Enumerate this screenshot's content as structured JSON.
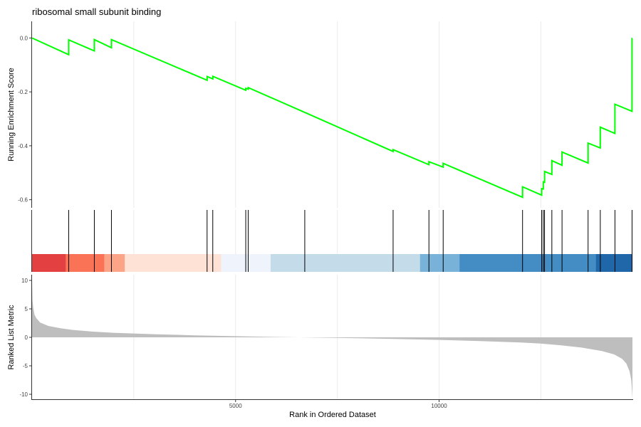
{
  "chart_data": {
    "type": "line",
    "title": "ribosomal small subunit binding",
    "xlabel": "Rank in Ordered Dataset",
    "xlim": [
      0,
      14750
    ],
    "x_ticks": [
      5000,
      10000
    ],
    "grid": true,
    "colors": {
      "running_score": "#00ff00",
      "hits": "#000000",
      "ranked_metric": "#bebebe",
      "heat_bands": [
        "#e34141",
        "#fb7356",
        "#fca487",
        "#fde2d5",
        "#eef3fc",
        "#c4dbe9",
        "#78b2d9",
        "#438dc4",
        "#2067aa"
      ]
    },
    "heatmap_bands": [
      {
        "start": 0,
        "end": 830
      },
      {
        "start": 830,
        "end": 1780
      },
      {
        "start": 1780,
        "end": 2280
      },
      {
        "start": 2280,
        "end": 4650
      },
      {
        "start": 4650,
        "end": 5860
      },
      {
        "start": 5860,
        "end": 9530
      },
      {
        "start": 9530,
        "end": 10500
      },
      {
        "start": 10500,
        "end": 13850
      },
      {
        "start": 13850,
        "end": 14750
      }
    ],
    "hits": [
      900,
      1530,
      1950,
      4300,
      4440,
      5250,
      5310,
      6700,
      8870,
      9750,
      10100,
      12050,
      12520,
      12560,
      12590,
      12770,
      13020,
      13660,
      13960,
      14320,
      14740
    ],
    "running_score": {
      "ylabel": "Running Enrichment Score",
      "ylim": [
        -0.63,
        0.03
      ],
      "y_ticks": [
        0.0,
        -0.2,
        -0.4,
        -0.6
      ],
      "y_tick_labels": [
        "0.0",
        "-0.2",
        "-0.4",
        "-0.6"
      ],
      "x": [
        0,
        900,
        900,
        1530,
        1530,
        1950,
        1950,
        4300,
        4300,
        4440,
        4440,
        5250,
        5250,
        5310,
        5310,
        6700,
        8870,
        8870,
        9750,
        9750,
        10100,
        10100,
        12050,
        12050,
        12520,
        12520,
        12560,
        12560,
        12590,
        12590,
        12770,
        12770,
        13020,
        13020,
        13660,
        13660,
        13960,
        13960,
        14320,
        14320,
        14740,
        14740,
        14750
      ],
      "y": [
        0.0,
        -0.062,
        -0.007,
        -0.048,
        -0.006,
        -0.036,
        -0.006,
        -0.157,
        -0.143,
        -0.152,
        -0.142,
        -0.194,
        -0.187,
        -0.19,
        -0.184,
        -0.276,
        -0.421,
        -0.414,
        -0.47,
        -0.459,
        -0.479,
        -0.465,
        -0.591,
        -0.552,
        -0.583,
        -0.559,
        -0.56,
        -0.534,
        -0.535,
        -0.495,
        -0.506,
        -0.455,
        -0.472,
        -0.423,
        -0.464,
        -0.39,
        -0.408,
        -0.331,
        -0.354,
        -0.246,
        -0.272,
        -0.002,
        -0.002
      ]
    },
    "ranked_metric": {
      "ylabel": "Ranked List Metric",
      "ylim": [
        -11,
        11
      ],
      "y_ticks": [
        10,
        5,
        0,
        -5,
        -10
      ],
      "y_tick_labels": [
        "10",
        "5",
        "0",
        "-5",
        "-10"
      ],
      "x": [
        0,
        10,
        30,
        60,
        100,
        200,
        400,
        700,
        1000,
        1500,
        2000,
        3000,
        4000,
        5000,
        6000,
        7000,
        8000,
        9000,
        10000,
        11000,
        12000,
        12500,
        13000,
        13500,
        14000,
        14300,
        14500,
        14600,
        14680,
        14720,
        14740,
        14750
      ],
      "y": [
        10.2,
        6.5,
        5.2,
        4.0,
        3.4,
        2.6,
        2.0,
        1.6,
        1.3,
        1.0,
        0.8,
        0.55,
        0.35,
        0.2,
        0.06,
        -0.05,
        -0.15,
        -0.3,
        -0.45,
        -0.65,
        -0.9,
        -1.1,
        -1.4,
        -1.8,
        -2.4,
        -3.0,
        -3.8,
        -4.6,
        -6.0,
        -7.5,
        -9.5,
        -10.8
      ]
    }
  }
}
